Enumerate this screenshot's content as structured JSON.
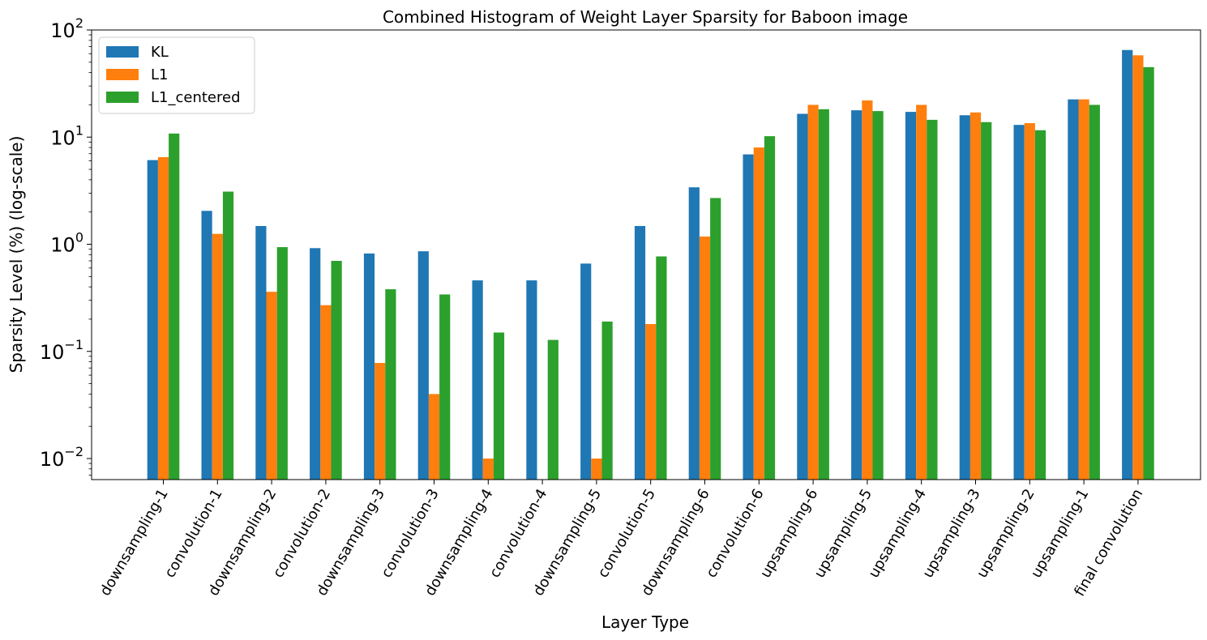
{
  "chart_data": {
    "type": "bar",
    "title": "Combined Histogram of Weight Layer Sparsity for Baboon image",
    "xlabel": "Layer Type",
    "ylabel": "Sparsity Level (%) (log-scale)",
    "yscale": "log",
    "ylim": [
      0.0063,
      100
    ],
    "yticks": [
      {
        "base": "10",
        "exp": "−2",
        "value": 0.01
      },
      {
        "base": "10",
        "exp": "−1",
        "value": 0.1
      },
      {
        "base": "10",
        "exp": "0",
        "value": 1
      },
      {
        "base": "10",
        "exp": "1",
        "value": 10
      },
      {
        "base": "10",
        "exp": "2",
        "value": 100
      }
    ],
    "grid": false,
    "legend_position": "top-left",
    "categories": [
      "downsampling-1",
      "convolution-1",
      "downsampling-2",
      "convolution-2",
      "downsampling-3",
      "convolution-3",
      "downsampling-4",
      "convolution-4",
      "downsampling-5",
      "convolution-5",
      "downsampling-6",
      "convolution-6",
      "upsampling-6",
      "upsampling-5",
      "upsampling-4",
      "upsampling-3",
      "upsampling-2",
      "upsampling-1",
      "final convolution"
    ],
    "series": [
      {
        "name": "KL",
        "color": "#1f77b4",
        "values": [
          6.1,
          2.05,
          1.48,
          0.92,
          0.82,
          0.86,
          0.46,
          0.46,
          0.66,
          1.48,
          3.4,
          6.9,
          16.5,
          17.8,
          17.2,
          16.0,
          13.0,
          22.5,
          65.0
        ]
      },
      {
        "name": "L1",
        "color": "#ff7f0e",
        "values": [
          6.5,
          1.25,
          0.36,
          0.27,
          0.078,
          0.04,
          0.01,
          null,
          0.01,
          0.18,
          1.18,
          8.0,
          20.0,
          22.0,
          20.0,
          17.0,
          13.5,
          22.5,
          58.0
        ]
      },
      {
        "name": "L1_centered",
        "color": "#2ca02c",
        "values": [
          10.8,
          3.1,
          0.94,
          0.7,
          0.38,
          0.34,
          0.15,
          0.128,
          0.19,
          0.77,
          2.7,
          10.2,
          18.2,
          17.5,
          14.5,
          13.8,
          11.6,
          20.0,
          45.0
        ]
      }
    ]
  }
}
